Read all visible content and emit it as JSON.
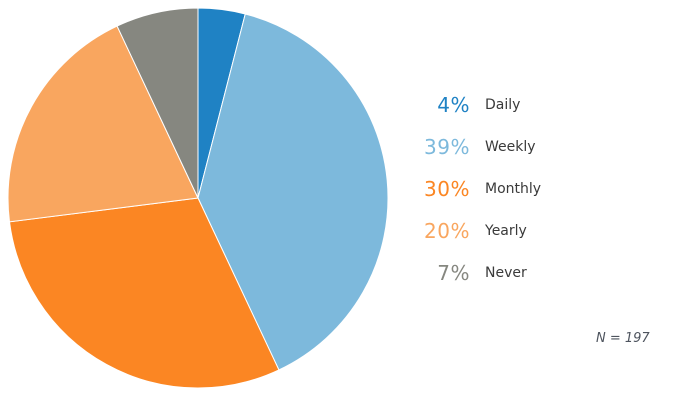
{
  "chart_data": {
    "type": "pie",
    "title": "",
    "categories": [
      "Daily",
      "Weekly",
      "Monthly",
      "Yearly",
      "Never"
    ],
    "values": [
      4,
      39,
      30,
      20,
      7
    ],
    "unit": "percent",
    "colors": [
      "#1f82c4",
      "#7db9dc",
      "#fb8623",
      "#f9a65f",
      "#868780"
    ],
    "start_angle_deg": 0,
    "direction": "clockwise",
    "legend_position": "right",
    "annotations": [
      "N = 197"
    ]
  },
  "legend": {
    "items": [
      {
        "percent": "4%",
        "label": "Daily",
        "color": "#1f82c4"
      },
      {
        "percent": "39%",
        "label": "Weekly",
        "color": "#7db9dc"
      },
      {
        "percent": "30%",
        "label": "Monthly",
        "color": "#fb8623"
      },
      {
        "percent": "20%",
        "label": "Yearly",
        "color": "#f9a65f"
      },
      {
        "percent": "7%",
        "label": "Never",
        "color": "#868780"
      }
    ]
  },
  "footnote": "N = 197"
}
